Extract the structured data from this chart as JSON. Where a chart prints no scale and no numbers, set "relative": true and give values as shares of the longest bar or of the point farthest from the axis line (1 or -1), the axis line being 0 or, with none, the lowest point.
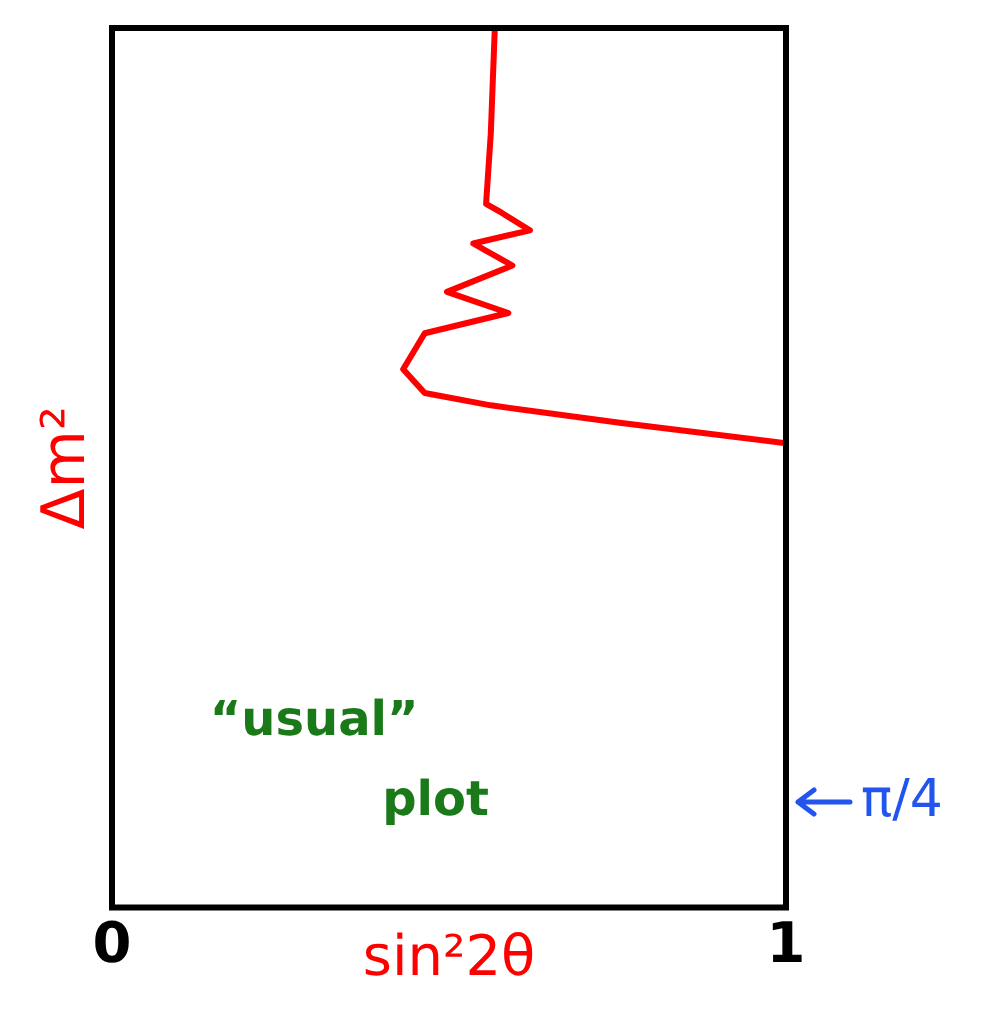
{
  "chart_data": {
    "type": "line",
    "xlabel": "sin²2θ",
    "ylabel": "Δm²",
    "relative": true,
    "xlim": [
      0,
      1
    ],
    "xticks": [
      0,
      1
    ],
    "grid": false,
    "legend": false,
    "marker": "none",
    "line_style": "solid",
    "annotations": [
      "“usual” plot",
      "π/4"
    ],
    "series": [
      {
        "color": "#ff0000",
        "x": [
          0.568,
          0.562,
          0.555,
          0.578,
          0.62,
          0.536,
          0.594,
          0.497,
          0.588,
          0.464,
          0.432,
          0.464,
          0.562,
          0.756,
          1.0
        ],
        "values": [
          1.0,
          0.88,
          0.8,
          0.79,
          0.77,
          0.755,
          0.73,
          0.7,
          0.676,
          0.653,
          0.612,
          0.585,
          0.571,
          0.551,
          0.528
        ]
      }
    ]
  }
}
